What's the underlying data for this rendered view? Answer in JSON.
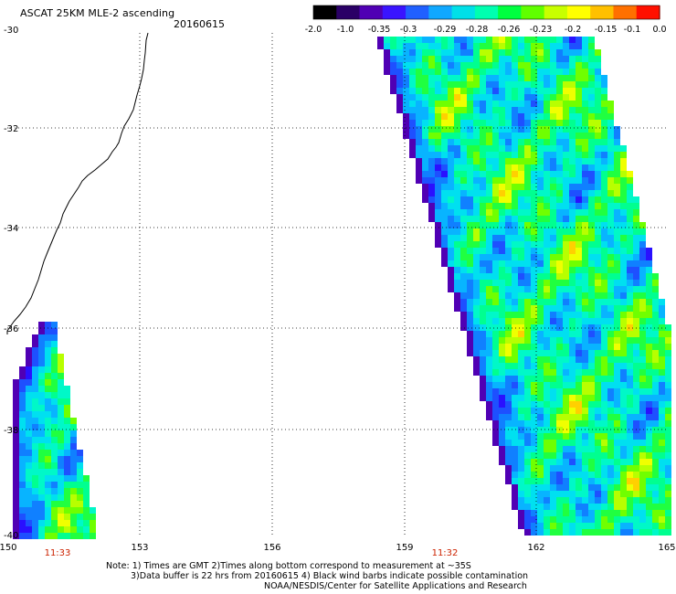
{
  "header": {
    "title": "ASCAT 25KM MLE-2 ascending",
    "date": "20160615"
  },
  "colorbar": {
    "labels": [
      "-2.0",
      "-1.0",
      "-0.35",
      "-0.3",
      "-0.29",
      "-0.28",
      "-0.26",
      "-0.23",
      "-0.2",
      "-0.15",
      "-0.1",
      "0.0"
    ],
    "colors": [
      "#000000",
      "#2a0066",
      "#5000b4",
      "#3a14ff",
      "#2060ff",
      "#10a8ff",
      "#00e0e8",
      "#00ffb0",
      "#00ff40",
      "#60ff00",
      "#c8ff00",
      "#ffff00",
      "#ffc000",
      "#ff7000",
      "#ff1000"
    ]
  },
  "axes": {
    "lat_labels": [
      "-30",
      "-32",
      "-34",
      "-36",
      "-38",
      "-40"
    ],
    "lon_labels": [
      "150",
      "153",
      "156",
      "159",
      "162",
      "165"
    ],
    "grid": true
  },
  "passes": {
    "left_time": "11:33",
    "right_time": "11:32"
  },
  "notes": {
    "line1": "Note: 1) Times are GMT 2)Times along bottom correspond to measurement at ~35S",
    "line2": "3)Data buffer is 22 hrs from 20160615 4) Black wind barbs indicate possible contamination",
    "line3": "NOAA/NESDIS/Center for Satellite Applications and Research"
  }
}
